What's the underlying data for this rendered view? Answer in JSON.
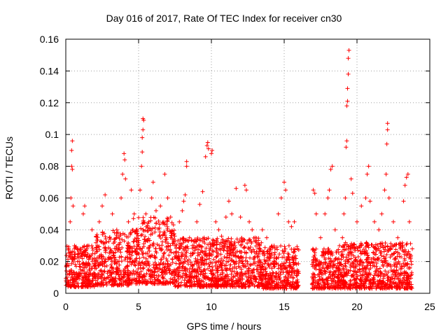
{
  "chart_data": {
    "type": "scatter",
    "title": "Day 016 of 2017, Rate Of TEC Index for receiver cn30",
    "xlabel": "GPS time / hours",
    "ylabel": "ROTI / TECUs",
    "xlim": [
      0,
      25
    ],
    "ylim": [
      0,
      0.16
    ],
    "xticks": [
      0,
      5,
      10,
      15,
      20,
      25
    ],
    "yticks": [
      0,
      0.02,
      0.04,
      0.06,
      0.08,
      0.1,
      0.12,
      0.14,
      0.16
    ],
    "xtick_labels": [
      "0",
      "5",
      "10",
      "15",
      "20",
      "25"
    ],
    "ytick_labels": [
      "0",
      "0.02",
      "0.04",
      "0.06",
      "0.08",
      "0.1",
      "0.12",
      "0.14",
      "0.16"
    ],
    "grid": true,
    "marker": "plus",
    "marker_color": "#ff0000",
    "data_gap_hours": [
      16.0,
      16.9
    ],
    "series": [
      {
        "name": "ROTI",
        "points": [
          [
            0.1,
            0.012
          ],
          [
            0.2,
            0.028
          ],
          [
            0.3,
            0.045
          ],
          [
            0.35,
            0.06
          ],
          [
            0.4,
            0.08
          ],
          [
            0.4,
            0.09
          ],
          [
            0.45,
            0.096
          ],
          [
            0.45,
            0.078
          ],
          [
            0.5,
            0.055
          ],
          [
            0.6,
            0.03
          ],
          [
            0.8,
            0.02
          ],
          [
            1.0,
            0.015
          ],
          [
            1.2,
            0.05
          ],
          [
            1.3,
            0.055
          ],
          [
            1.5,
            0.03
          ],
          [
            1.8,
            0.04
          ],
          [
            2.0,
            0.025
          ],
          [
            2.3,
            0.045
          ],
          [
            2.5,
            0.055
          ],
          [
            2.7,
            0.062
          ],
          [
            3.0,
            0.035
          ],
          [
            3.2,
            0.05
          ],
          [
            3.5,
            0.04
          ],
          [
            3.8,
            0.06
          ],
          [
            3.9,
            0.075
          ],
          [
            4.0,
            0.088
          ],
          [
            4.05,
            0.084
          ],
          [
            4.1,
            0.072
          ],
          [
            4.3,
            0.045
          ],
          [
            4.5,
            0.065
          ],
          [
            4.7,
            0.05
          ],
          [
            4.9,
            0.04
          ],
          [
            5.1,
            0.065
          ],
          [
            5.2,
            0.08
          ],
          [
            5.25,
            0.089
          ],
          [
            5.25,
            0.098
          ],
          [
            5.3,
            0.103
          ],
          [
            5.3,
            0.11
          ],
          [
            5.35,
            0.109
          ],
          [
            5.5,
            0.05
          ],
          [
            5.7,
            0.045
          ],
          [
            5.9,
            0.06
          ],
          [
            6.0,
            0.07
          ],
          [
            6.2,
            0.052
          ],
          [
            6.5,
            0.055
          ],
          [
            6.8,
            0.075
          ],
          [
            7.0,
            0.06
          ],
          [
            7.2,
            0.048
          ],
          [
            7.5,
            0.03
          ],
          [
            7.8,
            0.045
          ],
          [
            8.0,
            0.052
          ],
          [
            8.1,
            0.058
          ],
          [
            8.2,
            0.062
          ],
          [
            8.3,
            0.083
          ],
          [
            8.3,
            0.08
          ],
          [
            8.5,
            0.035
          ],
          [
            8.8,
            0.03
          ],
          [
            9.0,
            0.045
          ],
          [
            9.2,
            0.056
          ],
          [
            9.4,
            0.064
          ],
          [
            9.6,
            0.086
          ],
          [
            9.7,
            0.093
          ],
          [
            9.75,
            0.095
          ],
          [
            9.8,
            0.091
          ],
          [
            10.0,
            0.088
          ],
          [
            10.05,
            0.09
          ],
          [
            10.3,
            0.045
          ],
          [
            10.5,
            0.04
          ],
          [
            10.7,
            0.036
          ],
          [
            11.0,
            0.048
          ],
          [
            11.2,
            0.058
          ],
          [
            11.4,
            0.05
          ],
          [
            11.7,
            0.066
          ],
          [
            12.0,
            0.048
          ],
          [
            12.3,
            0.068
          ],
          [
            12.4,
            0.065
          ],
          [
            12.6,
            0.045
          ],
          [
            12.8,
            0.04
          ],
          [
            13.0,
            0.035
          ],
          [
            13.3,
            0.03
          ],
          [
            13.5,
            0.04
          ],
          [
            13.8,
            0.035
          ],
          [
            14.0,
            0.025
          ],
          [
            14.3,
            0.03
          ],
          [
            14.6,
            0.05
          ],
          [
            14.8,
            0.06
          ],
          [
            15.0,
            0.07
          ],
          [
            15.1,
            0.065
          ],
          [
            15.3,
            0.045
          ],
          [
            15.5,
            0.042
          ],
          [
            15.7,
            0.045
          ],
          [
            15.9,
            0.028
          ],
          [
            17.0,
            0.065
          ],
          [
            17.1,
            0.063
          ],
          [
            17.2,
            0.05
          ],
          [
            17.5,
            0.035
          ],
          [
            17.8,
            0.05
          ],
          [
            18.0,
            0.06
          ],
          [
            18.1,
            0.065
          ],
          [
            18.2,
            0.078
          ],
          [
            18.3,
            0.08
          ],
          [
            18.5,
            0.04
          ],
          [
            18.8,
            0.03
          ],
          [
            19.0,
            0.035
          ],
          [
            19.1,
            0.05
          ],
          [
            19.2,
            0.06
          ],
          [
            19.25,
            0.092
          ],
          [
            19.3,
            0.096
          ],
          [
            19.3,
            0.118
          ],
          [
            19.35,
            0.121
          ],
          [
            19.35,
            0.129
          ],
          [
            19.4,
            0.138
          ],
          [
            19.4,
            0.148
          ],
          [
            19.45,
            0.153
          ],
          [
            19.6,
            0.072
          ],
          [
            19.7,
            0.063
          ],
          [
            20.0,
            0.045
          ],
          [
            20.3,
            0.055
          ],
          [
            20.6,
            0.06
          ],
          [
            20.7,
            0.075
          ],
          [
            20.8,
            0.08
          ],
          [
            20.9,
            0.058
          ],
          [
            21.2,
            0.045
          ],
          [
            21.5,
            0.04
          ],
          [
            21.7,
            0.05
          ],
          [
            21.9,
            0.065
          ],
          [
            22.0,
            0.075
          ],
          [
            22.05,
            0.094
          ],
          [
            22.1,
            0.103
          ],
          [
            22.1,
            0.107
          ],
          [
            22.2,
            0.06
          ],
          [
            22.5,
            0.045
          ],
          [
            22.8,
            0.035
          ],
          [
            23.0,
            0.03
          ],
          [
            23.2,
            0.058
          ],
          [
            23.3,
            0.068
          ],
          [
            23.4,
            0.073
          ],
          [
            23.5,
            0.075
          ],
          [
            23.6,
            0.045
          ],
          [
            23.8,
            0.028
          ]
        ],
        "baseline_bands": [
          {
            "x": [
              0.0,
              2.0
            ],
            "y": [
              0.004,
              0.03
            ]
          },
          {
            "x": [
              2.0,
              4.5
            ],
            "y": [
              0.005,
              0.04
            ]
          },
          {
            "x": [
              4.5,
              7.5
            ],
            "y": [
              0.006,
              0.048
            ]
          },
          {
            "x": [
              7.5,
              10.5
            ],
            "y": [
              0.004,
              0.035
            ]
          },
          {
            "x": [
              10.5,
              13.5
            ],
            "y": [
              0.004,
              0.035
            ]
          },
          {
            "x": [
              13.5,
              16.0
            ],
            "y": [
              0.003,
              0.03
            ]
          },
          {
            "x": [
              16.9,
              19.0
            ],
            "y": [
              0.003,
              0.028
            ]
          },
          {
            "x": [
              19.0,
              23.8
            ],
            "y": [
              0.003,
              0.032
            ]
          }
        ]
      }
    ]
  }
}
